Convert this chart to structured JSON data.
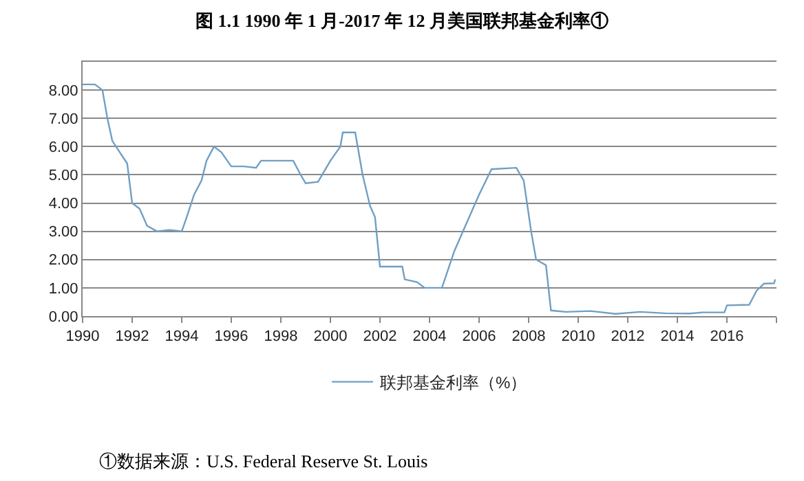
{
  "chart_data": {
    "type": "line",
    "title": "图 1.1 1990 年 1 月-2017 年 12 月美国联邦基金利率①",
    "x": [
      1990.0,
      1990.5,
      1990.8,
      1991.0,
      1991.2,
      1991.5,
      1991.8,
      1992.0,
      1992.3,
      1992.6,
      1993.0,
      1993.5,
      1994.0,
      1994.2,
      1994.5,
      1994.8,
      1995.0,
      1995.3,
      1995.6,
      1996.0,
      1996.5,
      1997.0,
      1997.2,
      1998.0,
      1998.5,
      1998.8,
      1999.0,
      1999.5,
      1999.8,
      2000.0,
      2000.4,
      2000.5,
      2001.0,
      2001.3,
      2001.6,
      2001.8,
      2002.0,
      2002.9,
      2003.0,
      2003.5,
      2003.8,
      2004.5,
      2005.0,
      2005.5,
      2006.0,
      2006.5,
      2007.5,
      2007.8,
      2008.1,
      2008.3,
      2008.7,
      2008.9,
      2009.5,
      2010.5,
      2011.5,
      2012.5,
      2013.5,
      2014.5,
      2015.0,
      2015.9,
      2016.0,
      2016.9,
      2017.2,
      2017.5,
      2017.9,
      2017.95
    ],
    "series": [
      {
        "name": "联邦基金利率（%）",
        "color": "#6f9fc5",
        "values": [
          8.2,
          8.2,
          8.0,
          7.0,
          6.2,
          5.8,
          5.4,
          4.0,
          3.8,
          3.2,
          3.0,
          3.05,
          3.0,
          3.5,
          4.3,
          4.8,
          5.5,
          6.0,
          5.8,
          5.3,
          5.3,
          5.25,
          5.5,
          5.5,
          5.5,
          5.0,
          4.7,
          4.75,
          5.2,
          5.5,
          6.0,
          6.5,
          6.5,
          5.0,
          3.9,
          3.5,
          1.75,
          1.75,
          1.3,
          1.2,
          1.0,
          1.0,
          2.3,
          3.3,
          4.3,
          5.2,
          5.25,
          4.8,
          3.0,
          2.0,
          1.8,
          0.2,
          0.15,
          0.18,
          0.08,
          0.15,
          0.1,
          0.09,
          0.13,
          0.13,
          0.38,
          0.4,
          0.9,
          1.15,
          1.16,
          1.3
        ]
      }
    ],
    "xlim": [
      1990,
      2018
    ],
    "xticks": [
      1990,
      1992,
      1994,
      1996,
      1998,
      2000,
      2002,
      2004,
      2006,
      2008,
      2010,
      2012,
      2014,
      2016,
      {
        "value": 2018,
        "label": null
      }
    ],
    "ylim": [
      0,
      9
    ],
    "yticks": [
      {
        "value": 0,
        "label": "0.00"
      },
      {
        "value": 1,
        "label": "1.00"
      },
      {
        "value": 2,
        "label": "2.00"
      },
      {
        "value": 3,
        "label": "3.00"
      },
      {
        "value": 4,
        "label": "4.00"
      },
      {
        "value": 5,
        "label": "5.00"
      },
      {
        "value": 6,
        "label": "6.00"
      },
      {
        "value": 7,
        "label": "7.00"
      },
      {
        "value": 8,
        "label": "8.00"
      },
      {
        "value": 9,
        "label": null
      }
    ],
    "grid": "y",
    "legend": "bottom",
    "marker": "none",
    "line_style": "solid",
    "annotations": [
      "①数据来源：U.S. Federal Reserve St. Louis"
    ]
  }
}
